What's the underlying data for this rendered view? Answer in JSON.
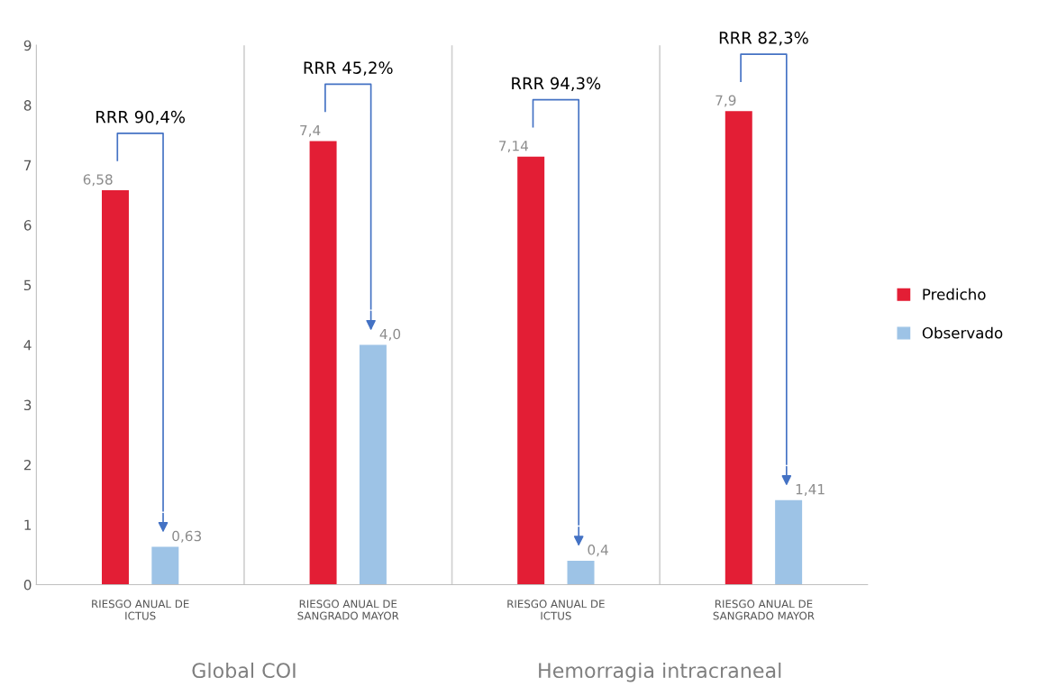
{
  "chart_data": {
    "type": "bar",
    "categories": [
      "RIESGO ANUAL DE ICTUS",
      "RIESGO ANUAL DE SANGRADO MAYOR",
      "RIESGO ANUAL DE ICTUS",
      "RIESGO ANUAL DE SANGRADO MAYOR"
    ],
    "series": [
      {
        "name": "Predicho",
        "color": "#e31e35",
        "values": [
          6.58,
          7.4,
          7.14,
          7.9
        ],
        "value_labels": [
          "6,58",
          "7,4",
          "7,14",
          "7,9"
        ]
      },
      {
        "name": "Observado",
        "color": "#9dc3e6",
        "values": [
          0.63,
          4.0,
          0.4,
          1.41
        ],
        "value_labels": [
          "0,63",
          "4,0",
          "0,4",
          "1,41"
        ]
      }
    ],
    "ylim": [
      0,
      9
    ],
    "yticks": [
      0,
      1,
      2,
      3,
      4,
      5,
      6,
      7,
      8,
      9
    ],
    "legend": "right",
    "grid": false,
    "annotations": [
      "RRR 90,4%",
      "RRR 45,2%",
      "RRR 94,3%",
      "RRR 82,3%",
      "Global COI",
      "Hemorragia intracraneal"
    ]
  }
}
